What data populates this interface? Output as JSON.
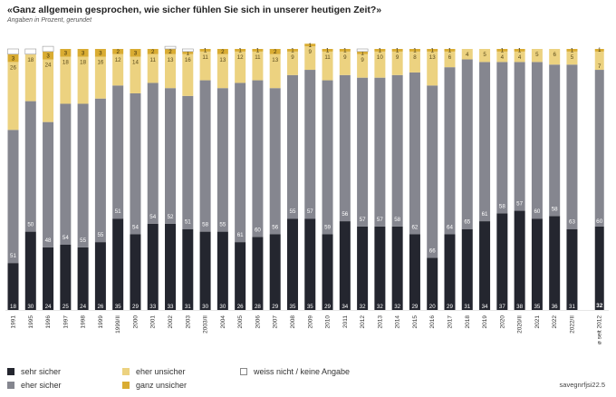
{
  "header": {
    "title": "«Ganz allgemein gesprochen, wie sicher fühlen Sie sich in unserer heutigen Zeit?»",
    "subtitle": "Angaben in Prozent, gerundet"
  },
  "source": "savegnrfjsi22.5",
  "colors": {
    "sehr_sicher": "#24262f",
    "eher_sicher": "#85868f",
    "eher_unsicher": "#ecd280",
    "ganz_unsicher": "#d9ac32",
    "weiss_nicht": "#ffffff"
  },
  "chart_data": {
    "type": "bar",
    "stacked": true,
    "ylim": [
      0,
      100
    ],
    "categories": [
      "1991",
      "1995",
      "1996",
      "1997",
      "1998",
      "1999",
      "1999/II",
      "2000",
      "2001",
      "2002",
      "2003",
      "2003/II",
      "2004",
      "2005",
      "2006",
      "2007",
      "2008",
      "2009",
      "2010",
      "2011",
      "2012",
      "2013",
      "2014",
      "2015",
      "2016",
      "2017",
      "2018",
      "2019",
      "2020",
      "2020/II",
      "2021",
      "2022",
      "2022/II"
    ],
    "series": [
      {
        "name": "sehr sicher",
        "key": "sehr_sicher",
        "values": [
          18,
          30,
          24,
          25,
          24,
          26,
          35,
          29,
          33,
          33,
          31,
          30,
          30,
          26,
          28,
          29,
          35,
          35,
          29,
          34,
          32,
          32,
          32,
          29,
          20,
          29,
          31,
          34,
          37,
          38,
          35,
          36,
          31
        ]
      },
      {
        "name": "eher sicher",
        "key": "eher_sicher",
        "values": [
          51,
          50,
          48,
          54,
          55,
          55,
          51,
          54,
          54,
          52,
          51,
          58,
          55,
          61,
          60,
          56,
          55,
          57,
          59,
          56,
          57,
          57,
          58,
          62,
          66,
          64,
          65,
          61,
          58,
          57,
          60,
          58,
          63
        ]
      },
      {
        "name": "eher unsicher",
        "key": "eher_unsicher",
        "values": [
          26,
          18,
          24,
          18,
          18,
          16,
          12,
          14,
          11,
          13,
          16,
          11,
          13,
          12,
          11,
          13,
          9,
          9,
          11,
          9,
          9,
          10,
          9,
          8,
          13,
          6,
          4,
          5,
          4,
          4,
          5,
          6,
          5
        ]
      },
      {
        "name": "ganz unsicher",
        "key": "ganz_unsicher",
        "values": [
          3,
          0,
          3,
          3,
          3,
          3,
          2,
          3,
          2,
          2,
          1,
          1,
          2,
          1,
          1,
          2,
          1,
          1,
          1,
          1,
          1,
          1,
          1,
          1,
          1,
          1,
          0,
          0,
          1,
          1,
          0,
          0,
          1
        ]
      },
      {
        "name": "weiss nicht / keine Angabe",
        "key": "weiss_nicht",
        "values": [
          2,
          2,
          2,
          0,
          0,
          0,
          0,
          0,
          0,
          1,
          1,
          0,
          0,
          0,
          0,
          0,
          0,
          0,
          0,
          0,
          1,
          0,
          0,
          0,
          0,
          0,
          0,
          0,
          0,
          0,
          0,
          0,
          0
        ]
      }
    ],
    "labeled_series": [
      "sehr_sicher",
      "eher_sicher",
      "eher_unsicher",
      "ganz_unsicher"
    ],
    "average": {
      "label": "ø seit 2012",
      "values": [
        32,
        60,
        7,
        1
      ],
      "value_labels": [
        "32",
        "60",
        "7",
        "1"
      ]
    }
  }
}
